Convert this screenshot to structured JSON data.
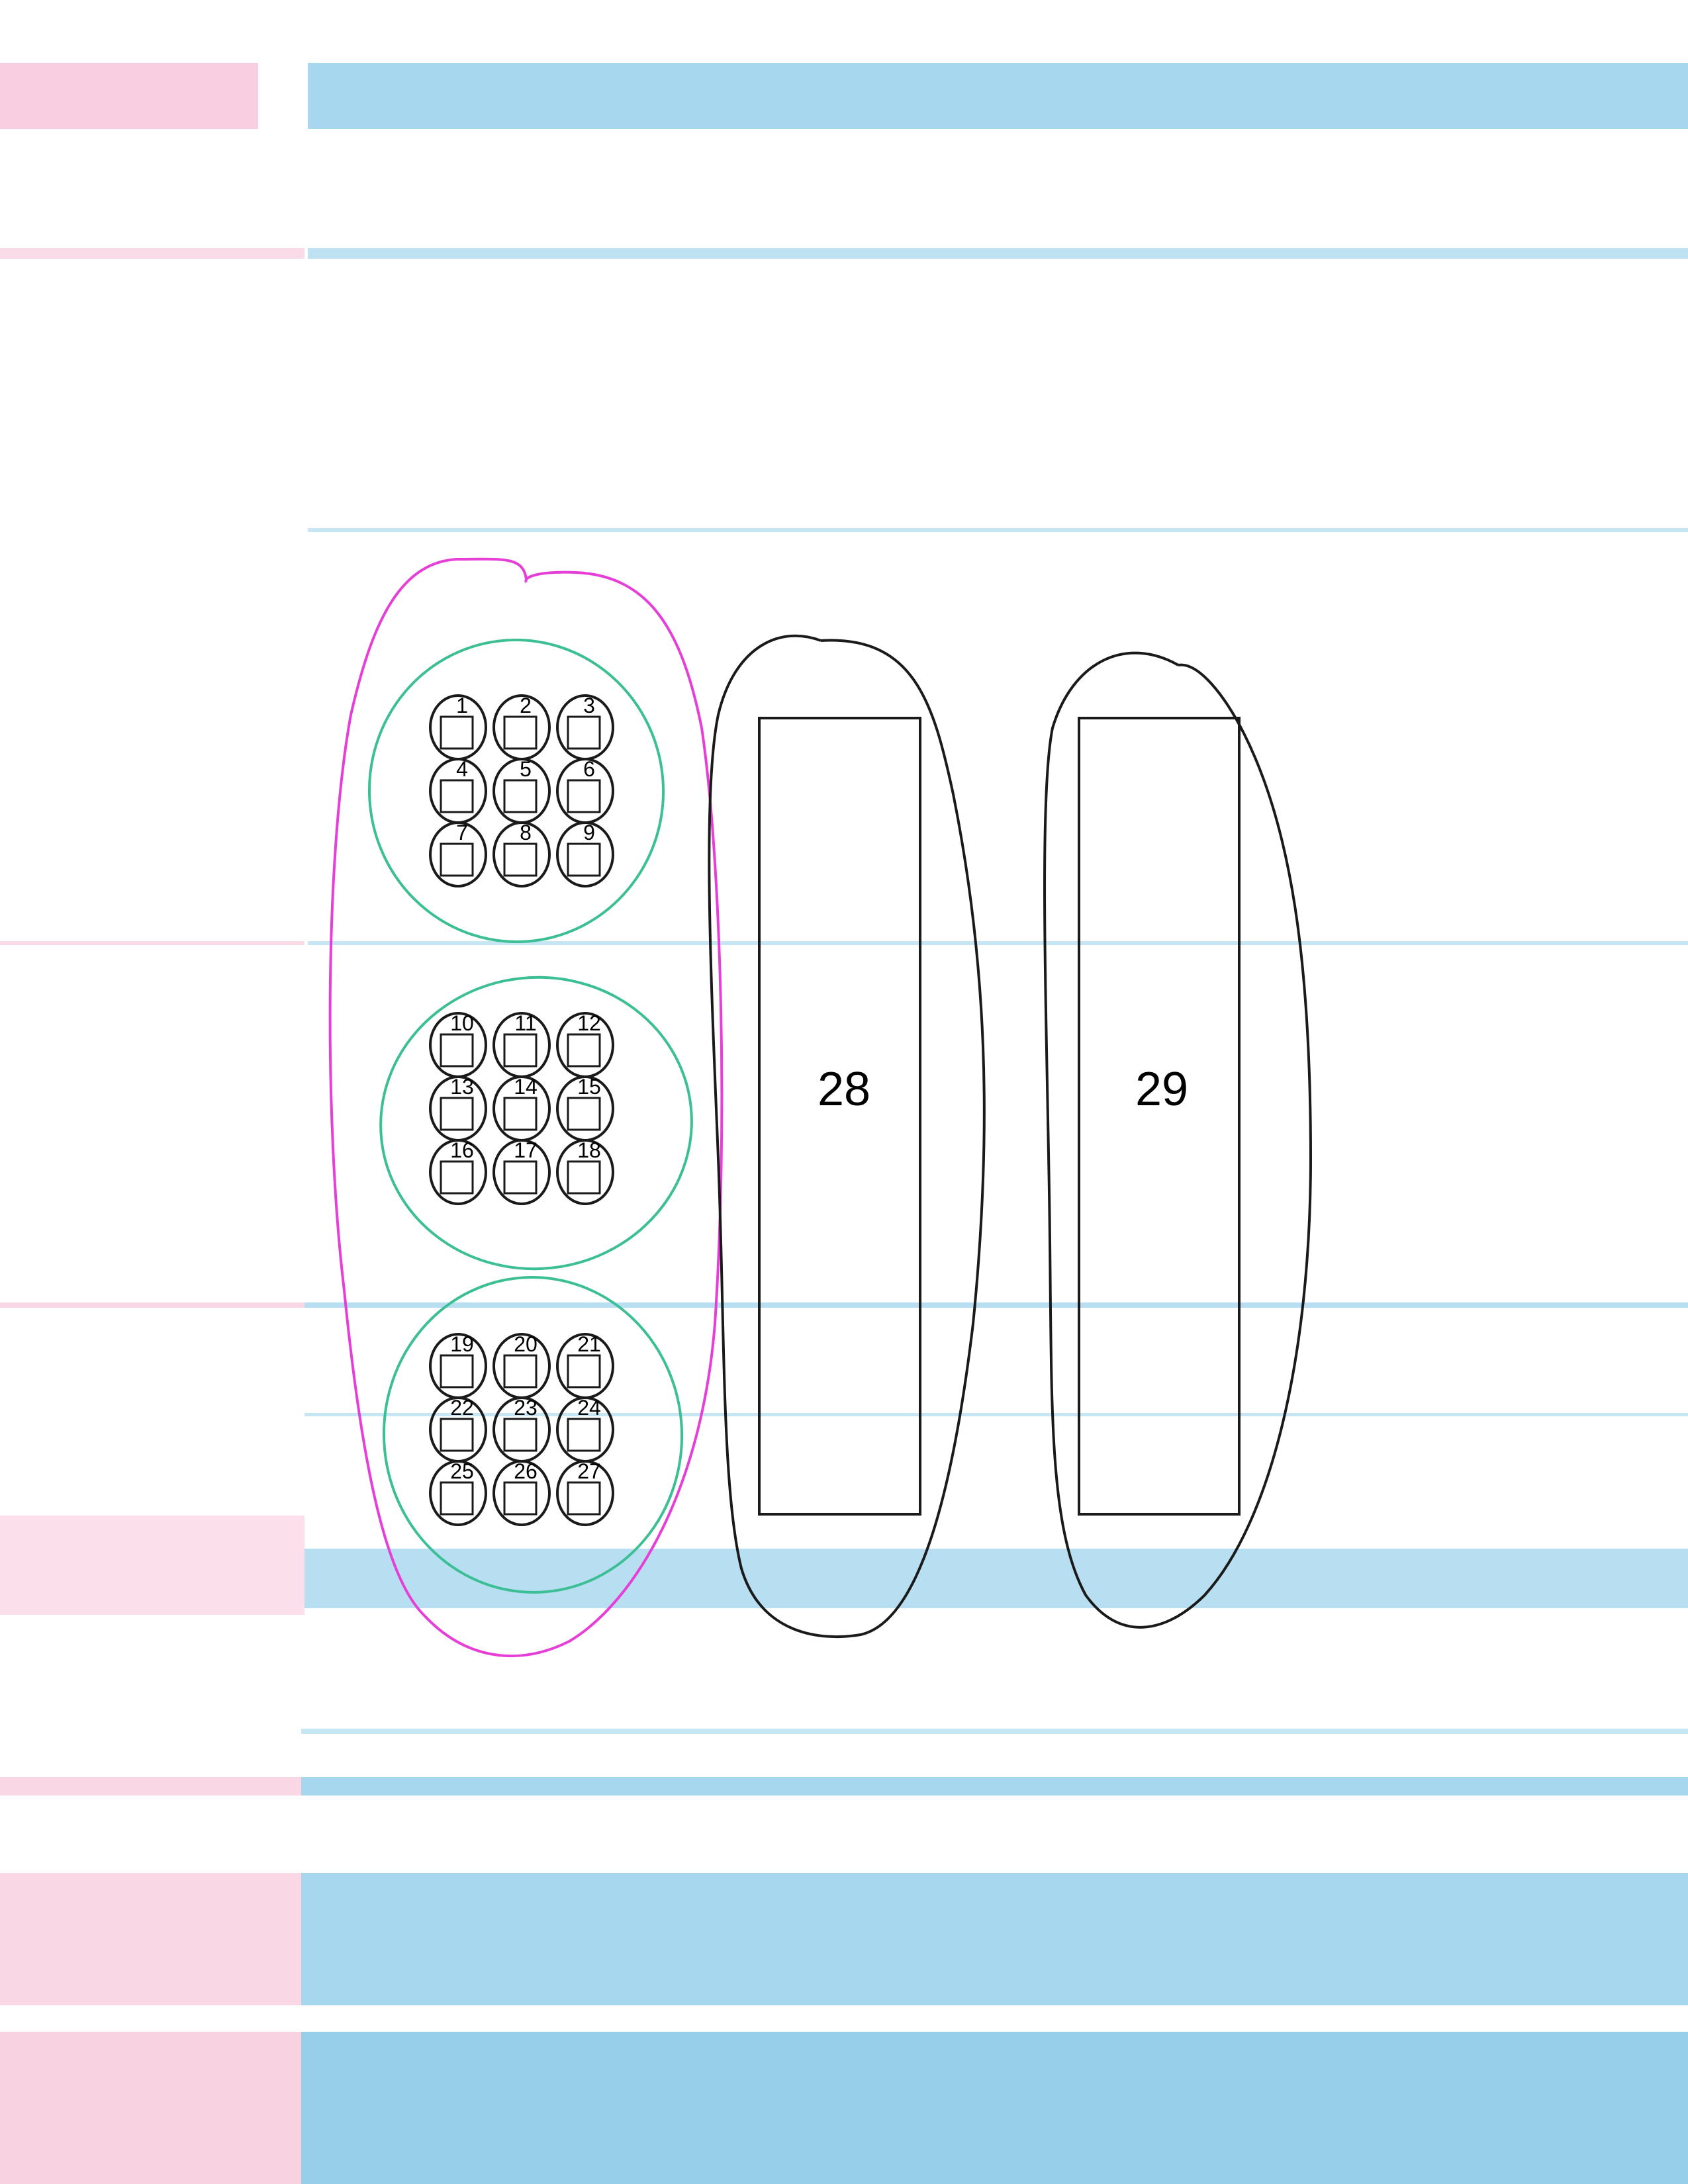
{
  "colors": {
    "background": "#ffffff",
    "stripe_blue": "#5fb6e0",
    "stripe_pink": "#f3a6c6",
    "outer_loop": "#e63fd8",
    "group_loop": "#3dbf95",
    "ink": "#1a1a1a"
  },
  "groups": [
    {
      "items": [
        "1",
        "2",
        "3",
        "4",
        "5",
        "6",
        "7",
        "8",
        "9"
      ]
    },
    {
      "items": [
        "10",
        "11",
        "12",
        "13",
        "14",
        "15",
        "16",
        "17",
        "18"
      ]
    },
    {
      "items": [
        "19",
        "20",
        "21",
        "22",
        "23",
        "24",
        "25",
        "26",
        "27"
      ]
    }
  ],
  "big_boxes": [
    "28",
    "29"
  ]
}
